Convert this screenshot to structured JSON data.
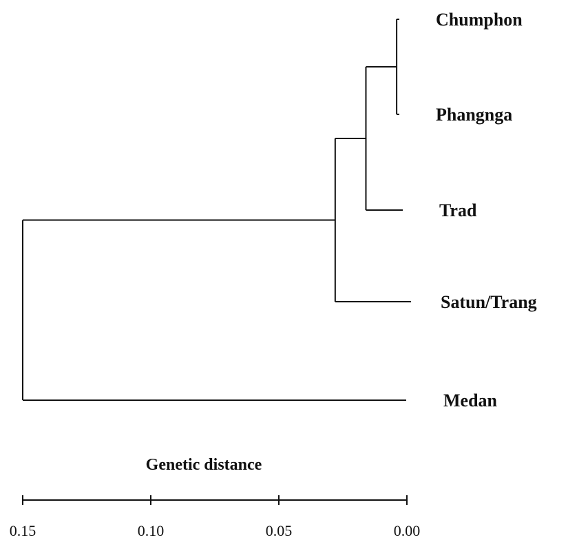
{
  "dendrogram": {
    "leaves": [
      {
        "id": "chumphon",
        "label": "Chumphon"
      },
      {
        "id": "phangnga",
        "label": "Phangnga"
      },
      {
        "id": "trad",
        "label": "Trad"
      },
      {
        "id": "satun_trang",
        "label": "Satun/Trang"
      },
      {
        "id": "medan",
        "label": "Medan"
      }
    ],
    "merges": [
      {
        "id": "n1",
        "children": [
          "chumphon",
          "phangnga"
        ],
        "distance": 0.004
      },
      {
        "id": "n2",
        "children": [
          "n1",
          "trad"
        ],
        "distance": 0.016
      },
      {
        "id": "n3",
        "children": [
          "n2",
          "satun_trang"
        ],
        "distance": 0.028
      },
      {
        "id": "root",
        "children": [
          "n3",
          "medan"
        ],
        "distance": 0.15
      }
    ]
  },
  "axis": {
    "title": "Genetic distance",
    "ticks": [
      {
        "value": 0.15,
        "label": "0.15"
      },
      {
        "value": 0.1,
        "label": "0.10"
      },
      {
        "value": 0.05,
        "label": "0.05"
      },
      {
        "value": 0.0,
        "label": "0.00"
      }
    ]
  }
}
